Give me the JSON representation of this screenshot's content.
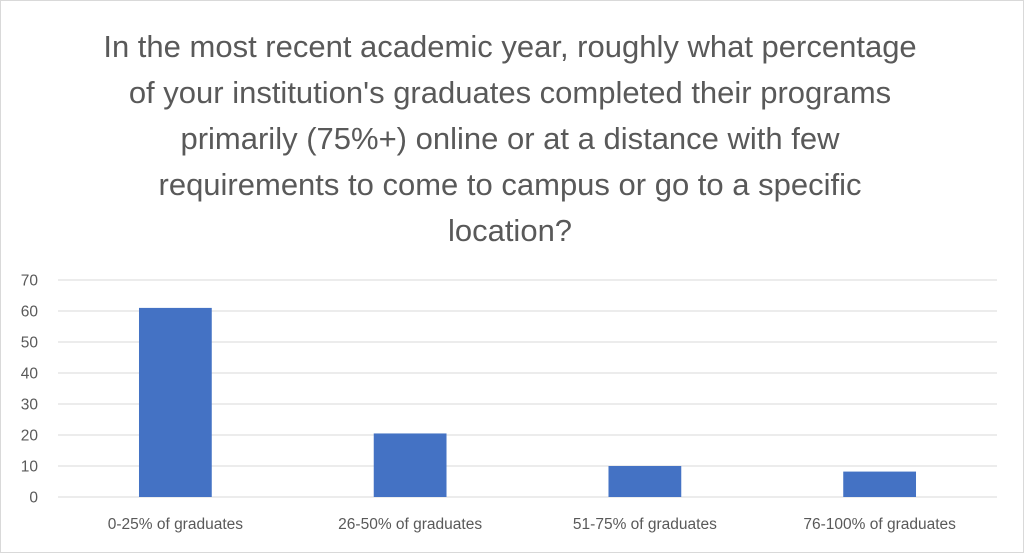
{
  "chart_data": {
    "type": "bar",
    "title": "In the most recent academic year, roughly what percentage of your institution's graduates completed their programs primarily (75%+) online or at a distance with few requirements to come to campus or go to a specific location?",
    "categories": [
      "0-25% of graduates",
      "26-50% of graduates",
      "51-75% of graduates",
      "76-100% of graduates"
    ],
    "series": [
      {
        "values": [
          61,
          20.5,
          10,
          8.2
        ]
      }
    ],
    "ylim": [
      0,
      70
    ],
    "yticks": [
      0,
      10,
      20,
      30,
      40,
      50,
      60,
      70
    ],
    "grid": true,
    "legend": "none",
    "bar_color": "#4472c4"
  }
}
